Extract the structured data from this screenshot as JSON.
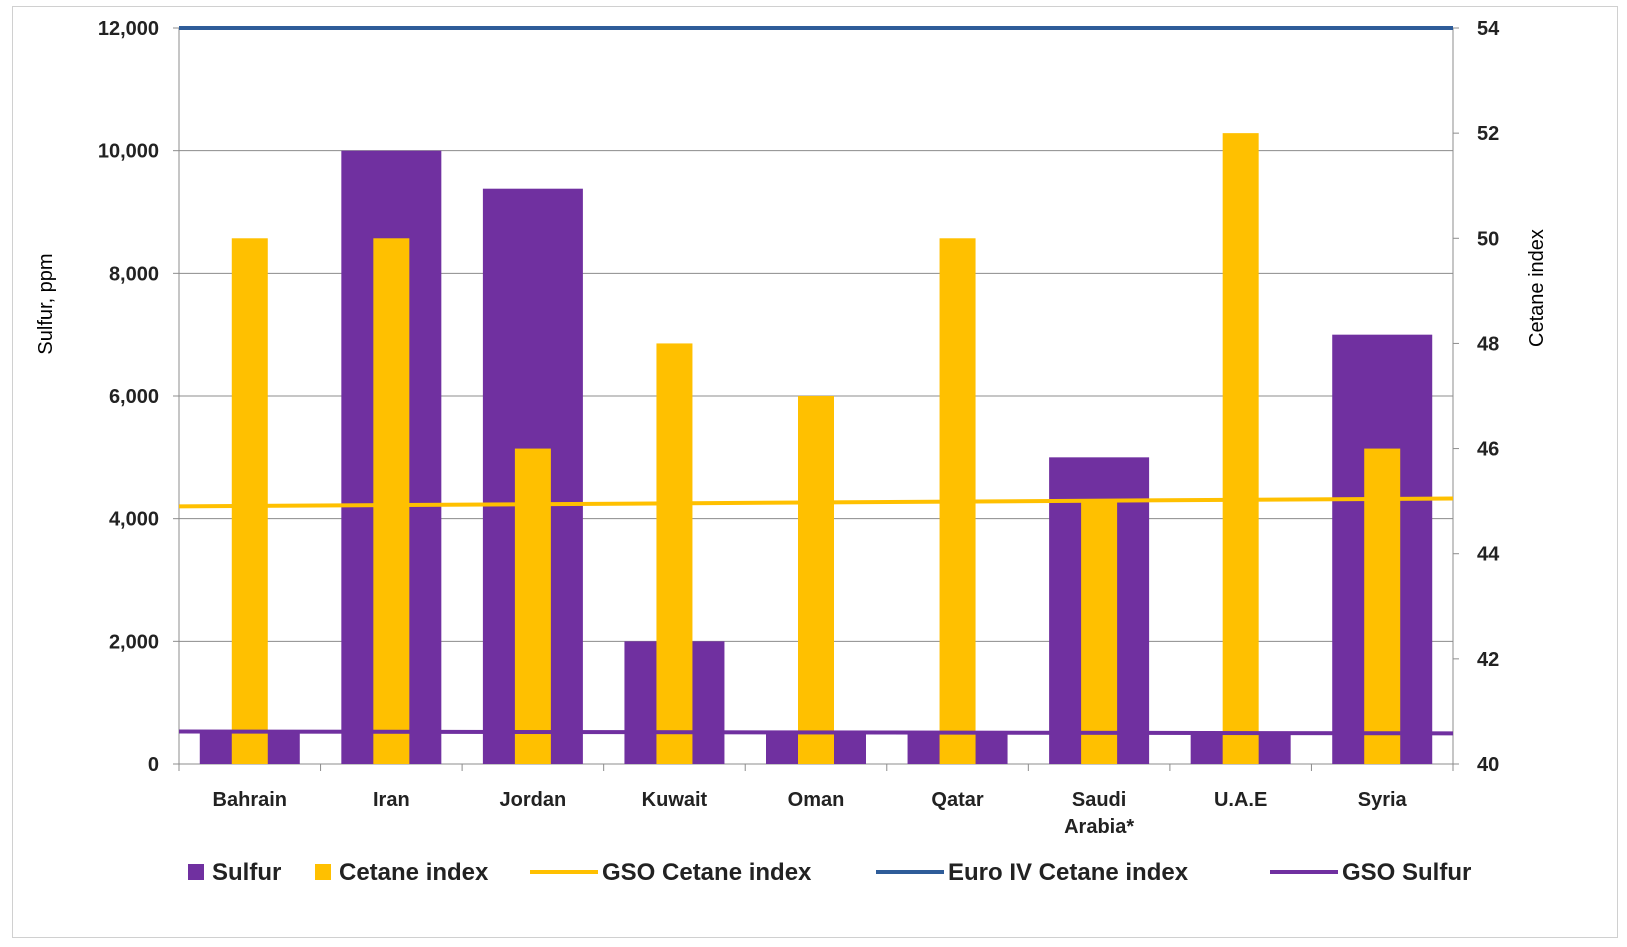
{
  "chart_data": {
    "type": "bar",
    "categories": [
      "Bahrain",
      "Iran",
      "Jordan",
      "Kuwait",
      "Oman",
      "Qatar",
      "Saudi\nArabia*",
      "U.A.E",
      "Syria"
    ],
    "series": [
      {
        "name": "Sulfur",
        "axis": "left",
        "values": [
          500,
          10000,
          9380,
          2000,
          500,
          500,
          5000,
          500,
          7000
        ]
      },
      {
        "name": "Cetane index",
        "axis": "right",
        "values": [
          50,
          50,
          46,
          48,
          47,
          50,
          45,
          52,
          46
        ]
      }
    ],
    "lines": [
      {
        "name": "GSO Cetane index",
        "axis": "right",
        "values": [
          44.9,
          45.05
        ]
      },
      {
        "name": "Euro IV Cetane index",
        "axis": "right",
        "values": [
          54,
          54
        ]
      },
      {
        "name": "GSO Sulfur",
        "axis": "left",
        "values": [
          530,
          500
        ]
      }
    ],
    "ylabel": "Sulfur, ppm",
    "y2label": "Cetane index",
    "ylim": [
      0,
      12000
    ],
    "y2lim": [
      40,
      54
    ],
    "yticks": [
      "0",
      "2,000",
      "4,000",
      "6,000",
      "8,000",
      "10,000",
      "12,000"
    ],
    "y2ticks": [
      "40",
      "42",
      "44",
      "46",
      "48",
      "50",
      "52",
      "54"
    ],
    "grid": true,
    "legend_position": "bottom",
    "colors": {
      "Sulfur": "#7030A0",
      "Cetane index": "#FFC000",
      "GSO Cetane index": "#FFC000",
      "Euro IV Cetane index": "#2E5C99",
      "GSO Sulfur": "#7030A0"
    }
  }
}
